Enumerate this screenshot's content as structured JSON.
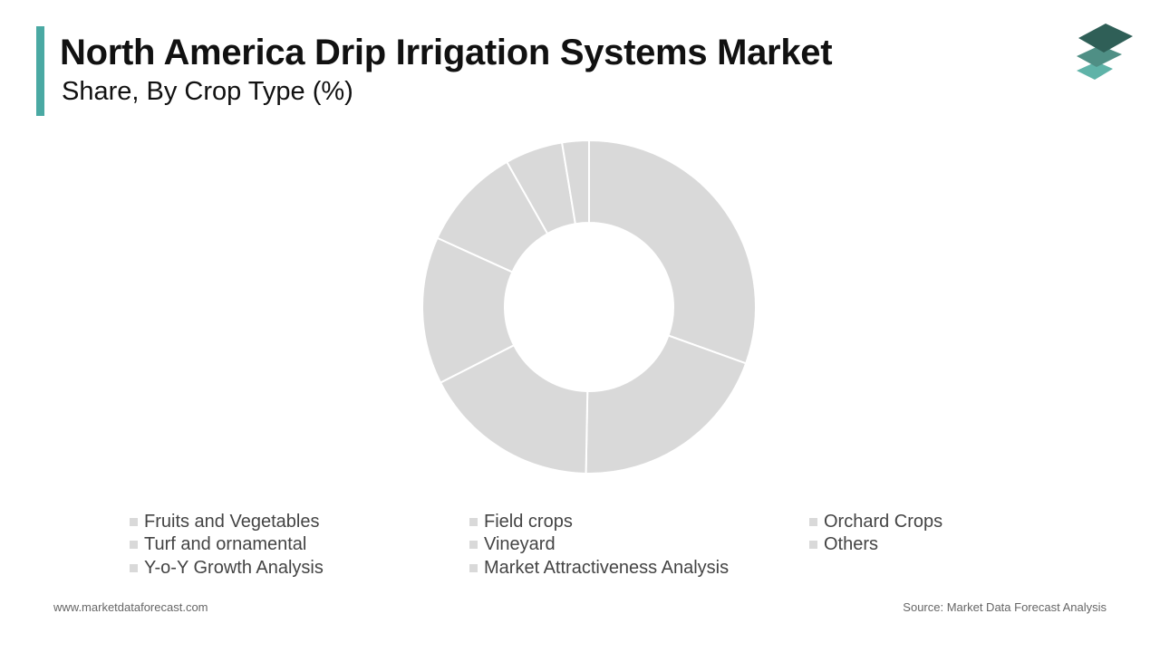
{
  "header": {
    "title": "North America Drip Irrigation Systems Market",
    "subtitle": "Share, By Crop Type (%)",
    "accent_color": "#4aa9a3"
  },
  "logo": {
    "icon": "stacked-layers-logo-icon",
    "colors": [
      "#2f5f57",
      "#4f8f85",
      "#5fb3a8"
    ]
  },
  "chart_data": {
    "type": "pie",
    "donut": true,
    "title": "Share, By Crop Type (%)",
    "slice_color": "#d9d9d9",
    "separator_color": "#ffffff",
    "slices": [
      {
        "label": "Fruits and Vegetables",
        "value": 30.5
      },
      {
        "label": "Field crops",
        "value": 19.8
      },
      {
        "label": "Orchard Crops",
        "value": 17.2
      },
      {
        "label": "Turf and ornamental",
        "value": 14.3
      },
      {
        "label": "Vineyard",
        "value": 10.0
      },
      {
        "label": "Others",
        "value": 5.6
      },
      {
        "label": "Y-o-Y Growth Analysis",
        "value": 2.6
      },
      {
        "label": "Market Attractiveness Analysis",
        "value": 0.0
      }
    ],
    "legend_position": "bottom"
  },
  "legend": {
    "swatch_color": "#d9d9d9",
    "items": [
      "Fruits and Vegetables",
      "Field crops",
      "Orchard Crops",
      "Turf and ornamental",
      "Vineyard",
      "Others",
      "Y-o-Y Growth Analysis",
      "Market Attractiveness Analysis"
    ]
  },
  "footer": {
    "website": "www.marketdataforecast.com",
    "source": "Source: Market Data Forecast Analysis"
  }
}
